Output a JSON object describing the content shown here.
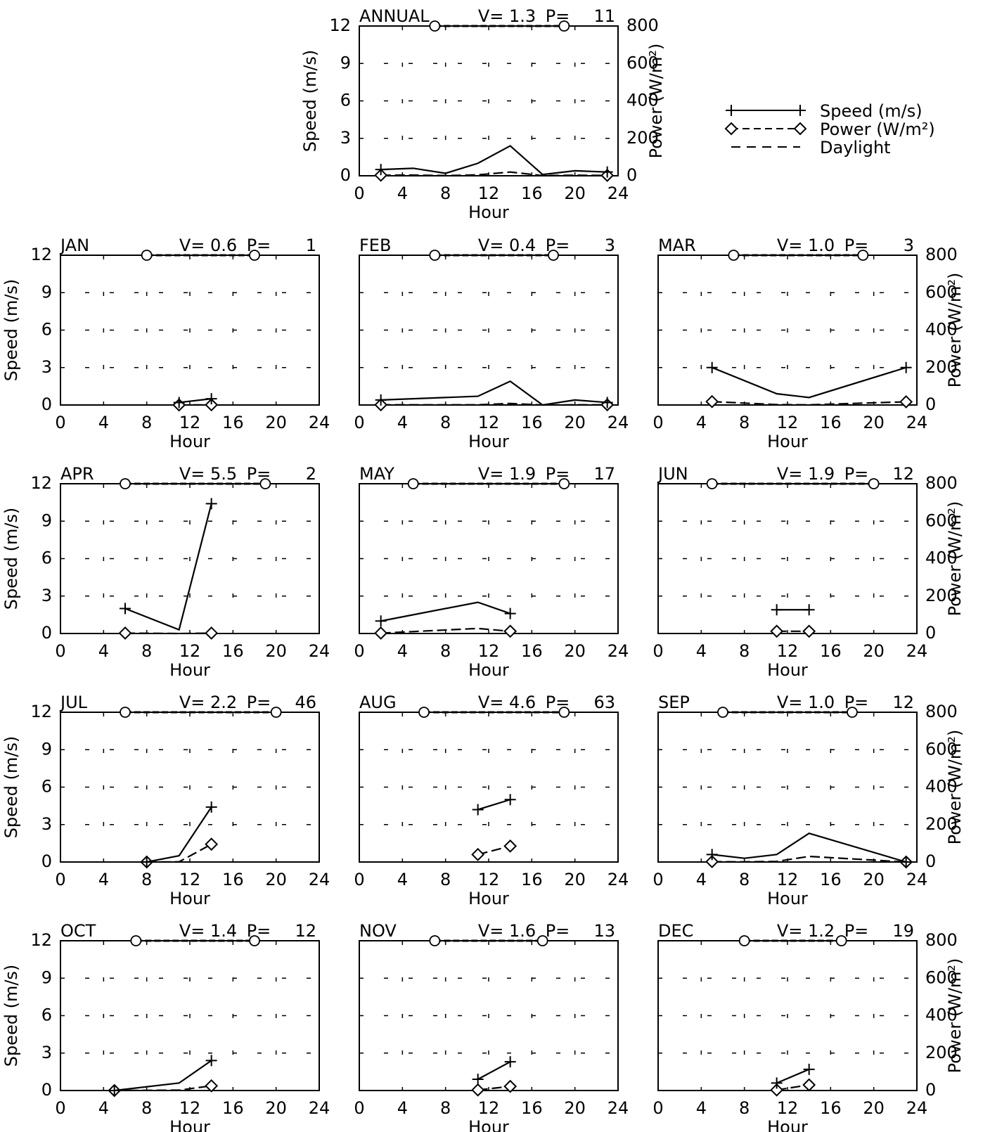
{
  "legend": {
    "items": [
      {
        "label": "Speed (m/s)",
        "marker": "plus",
        "line": "solid"
      },
      {
        "label": "Power (W/m²)",
        "marker": "diamond",
        "line": "dashed"
      },
      {
        "label": "Daylight",
        "marker": "none",
        "line": "dashed"
      }
    ]
  },
  "axes": {
    "xlabel": "Hour",
    "ylabel_left": "Speed (m/s)",
    "ylabel_right": "Power (W/m²)",
    "x_ticks": [
      "0",
      "4",
      "8",
      "12",
      "16",
      "20",
      "24"
    ],
    "y_left_ticks": [
      "0",
      "3",
      "6",
      "9",
      "12"
    ],
    "y_right_ticks": [
      "0",
      "200",
      "400",
      "600",
      "800"
    ]
  },
  "chart_data": [
    {
      "type": "line",
      "title": "ANNUAL",
      "V": "1.3",
      "P": "11",
      "xlim": [
        0,
        24
      ],
      "ylim": [
        0,
        12
      ],
      "y2lim": [
        0,
        800
      ],
      "grid": true,
      "daylight": [
        7,
        19
      ],
      "speed": {
        "x": [
          2,
          5,
          8,
          11,
          14,
          17,
          20,
          23
        ],
        "y": [
          0.5,
          0.6,
          0.2,
          1.0,
          2.4,
          0.1,
          0.4,
          0.3
        ]
      },
      "power": {
        "x": [
          2,
          5,
          8,
          11,
          14,
          17,
          20,
          23
        ],
        "y": [
          3,
          4,
          1,
          5,
          20,
          1,
          3,
          2
        ]
      }
    },
    {
      "type": "line",
      "title": "JAN",
      "V": "0.6",
      "P": "1",
      "xlim": [
        0,
        24
      ],
      "ylim": [
        0,
        12
      ],
      "y2lim": [
        0,
        800
      ],
      "grid": true,
      "daylight": [
        8,
        18
      ],
      "speed": {
        "x": [
          11,
          14
        ],
        "y": [
          0.2,
          0.5
        ]
      },
      "power": {
        "x": [
          11,
          14
        ],
        "y": [
          0,
          1
        ]
      }
    },
    {
      "type": "line",
      "title": "FEB",
      "V": "0.4",
      "P": "3",
      "xlim": [
        0,
        24
      ],
      "ylim": [
        0,
        12
      ],
      "y2lim": [
        0,
        800
      ],
      "grid": true,
      "daylight": [
        7,
        18
      ],
      "speed": {
        "x": [
          2,
          11,
          14,
          17,
          20,
          23
        ],
        "y": [
          0.4,
          0.7,
          1.9,
          0.0,
          0.4,
          0.2
        ]
      },
      "power": {
        "x": [
          2,
          11,
          14,
          17,
          20,
          23
        ],
        "y": [
          1,
          1,
          8,
          0,
          1,
          1
        ]
      }
    },
    {
      "type": "line",
      "title": "MAR",
      "V": "1.0",
      "P": "3",
      "xlim": [
        0,
        24
      ],
      "ylim": [
        0,
        12
      ],
      "y2lim": [
        0,
        800
      ],
      "grid": true,
      "daylight": [
        7,
        19
      ],
      "speed": {
        "x": [
          5,
          11,
          14,
          23
        ],
        "y": [
          3.0,
          0.9,
          0.6,
          3.0
        ]
      },
      "power": {
        "x": [
          5,
          11,
          14,
          23
        ],
        "y": [
          18,
          2,
          1,
          17
        ]
      }
    },
    {
      "type": "line",
      "title": "APR",
      "V": "5.5",
      "P": "2",
      "xlim": [
        0,
        24
      ],
      "ylim": [
        0,
        12
      ],
      "y2lim": [
        0,
        800
      ],
      "grid": true,
      "daylight": [
        6,
        19
      ],
      "speed": {
        "x": [
          6,
          11,
          14
        ],
        "y": [
          2.0,
          0.3,
          10.4
        ]
      },
      "power": {
        "x": [
          6,
          11,
          14
        ],
        "y": [
          2,
          0,
          2
        ]
      }
    },
    {
      "type": "line",
      "title": "MAY",
      "V": "1.9",
      "P": "17",
      "xlim": [
        0,
        24
      ],
      "ylim": [
        0,
        12
      ],
      "y2lim": [
        0,
        800
      ],
      "grid": true,
      "daylight": [
        5,
        19
      ],
      "speed": {
        "x": [
          2,
          11,
          14
        ],
        "y": [
          1.0,
          2.5,
          1.6
        ]
      },
      "power": {
        "x": [
          2,
          11,
          14
        ],
        "y": [
          2,
          27,
          12
        ]
      }
    },
    {
      "type": "line",
      "title": "JUN",
      "V": "1.9",
      "P": "12",
      "xlim": [
        0,
        24
      ],
      "ylim": [
        0,
        12
      ],
      "y2lim": [
        0,
        800
      ],
      "grid": true,
      "daylight": [
        5,
        20
      ],
      "speed": {
        "x": [
          11,
          14
        ],
        "y": [
          1.9,
          1.9
        ]
      },
      "power": {
        "x": [
          11,
          14
        ],
        "y": [
          12,
          12
        ]
      }
    },
    {
      "type": "line",
      "title": "JUL",
      "V": "2.2",
      "P": "46",
      "xlim": [
        0,
        24
      ],
      "ylim": [
        0,
        12
      ],
      "y2lim": [
        0,
        800
      ],
      "grid": true,
      "daylight": [
        6,
        20
      ],
      "speed": {
        "x": [
          8,
          11,
          14
        ],
        "y": [
          0.0,
          0.5,
          4.4
        ]
      },
      "power": {
        "x": [
          8,
          11,
          14
        ],
        "y": [
          0,
          1,
          95
        ]
      }
    },
    {
      "type": "line",
      "title": "AUG",
      "V": "4.6",
      "P": "63",
      "xlim": [
        0,
        24
      ],
      "ylim": [
        0,
        12
      ],
      "y2lim": [
        0,
        800
      ],
      "grid": true,
      "daylight": [
        6,
        19
      ],
      "speed": {
        "x": [
          11,
          14
        ],
        "y": [
          4.2,
          5.0
        ]
      },
      "power": {
        "x": [
          11,
          14
        ],
        "y": [
          40,
          85
        ]
      }
    },
    {
      "type": "line",
      "title": "SEP",
      "V": "1.0",
      "P": "12",
      "xlim": [
        0,
        24
      ],
      "ylim": [
        0,
        12
      ],
      "y2lim": [
        0,
        800
      ],
      "grid": true,
      "daylight": [
        6,
        18
      ],
      "speed": {
        "x": [
          5,
          8,
          11,
          14,
          23
        ],
        "y": [
          0.6,
          0.3,
          0.6,
          2.3,
          0.0
        ]
      },
      "power": {
        "x": [
          5,
          8,
          11,
          14,
          23
        ],
        "y": [
          2,
          1,
          3,
          30,
          0
        ]
      }
    },
    {
      "type": "line",
      "title": "OCT",
      "V": "1.4",
      "P": "12",
      "xlim": [
        0,
        24
      ],
      "ylim": [
        0,
        12
      ],
      "y2lim": [
        0,
        800
      ],
      "grid": true,
      "daylight": [
        7,
        18
      ],
      "speed": {
        "x": [
          5,
          11,
          14
        ],
        "y": [
          0.0,
          0.6,
          2.4
        ]
      },
      "power": {
        "x": [
          5,
          11,
          14
        ],
        "y": [
          0,
          2,
          25
        ]
      }
    },
    {
      "type": "line",
      "title": "NOV",
      "V": "1.6",
      "P": "13",
      "xlim": [
        0,
        24
      ],
      "ylim": [
        0,
        12
      ],
      "y2lim": [
        0,
        800
      ],
      "grid": true,
      "daylight": [
        7,
        17
      ],
      "speed": {
        "x": [
          11,
          14
        ],
        "y": [
          0.9,
          2.3
        ]
      },
      "power": {
        "x": [
          11,
          14
        ],
        "y": [
          3,
          22
        ]
      }
    },
    {
      "type": "line",
      "title": "DEC",
      "V": "1.2",
      "P": "19",
      "xlim": [
        0,
        24
      ],
      "ylim": [
        0,
        12
      ],
      "y2lim": [
        0,
        800
      ],
      "grid": true,
      "daylight": [
        8,
        17
      ],
      "speed": {
        "x": [
          11,
          14
        ],
        "y": [
          0.6,
          1.7
        ]
      },
      "power": {
        "x": [
          11,
          14
        ],
        "y": [
          3,
          30
        ]
      }
    }
  ]
}
